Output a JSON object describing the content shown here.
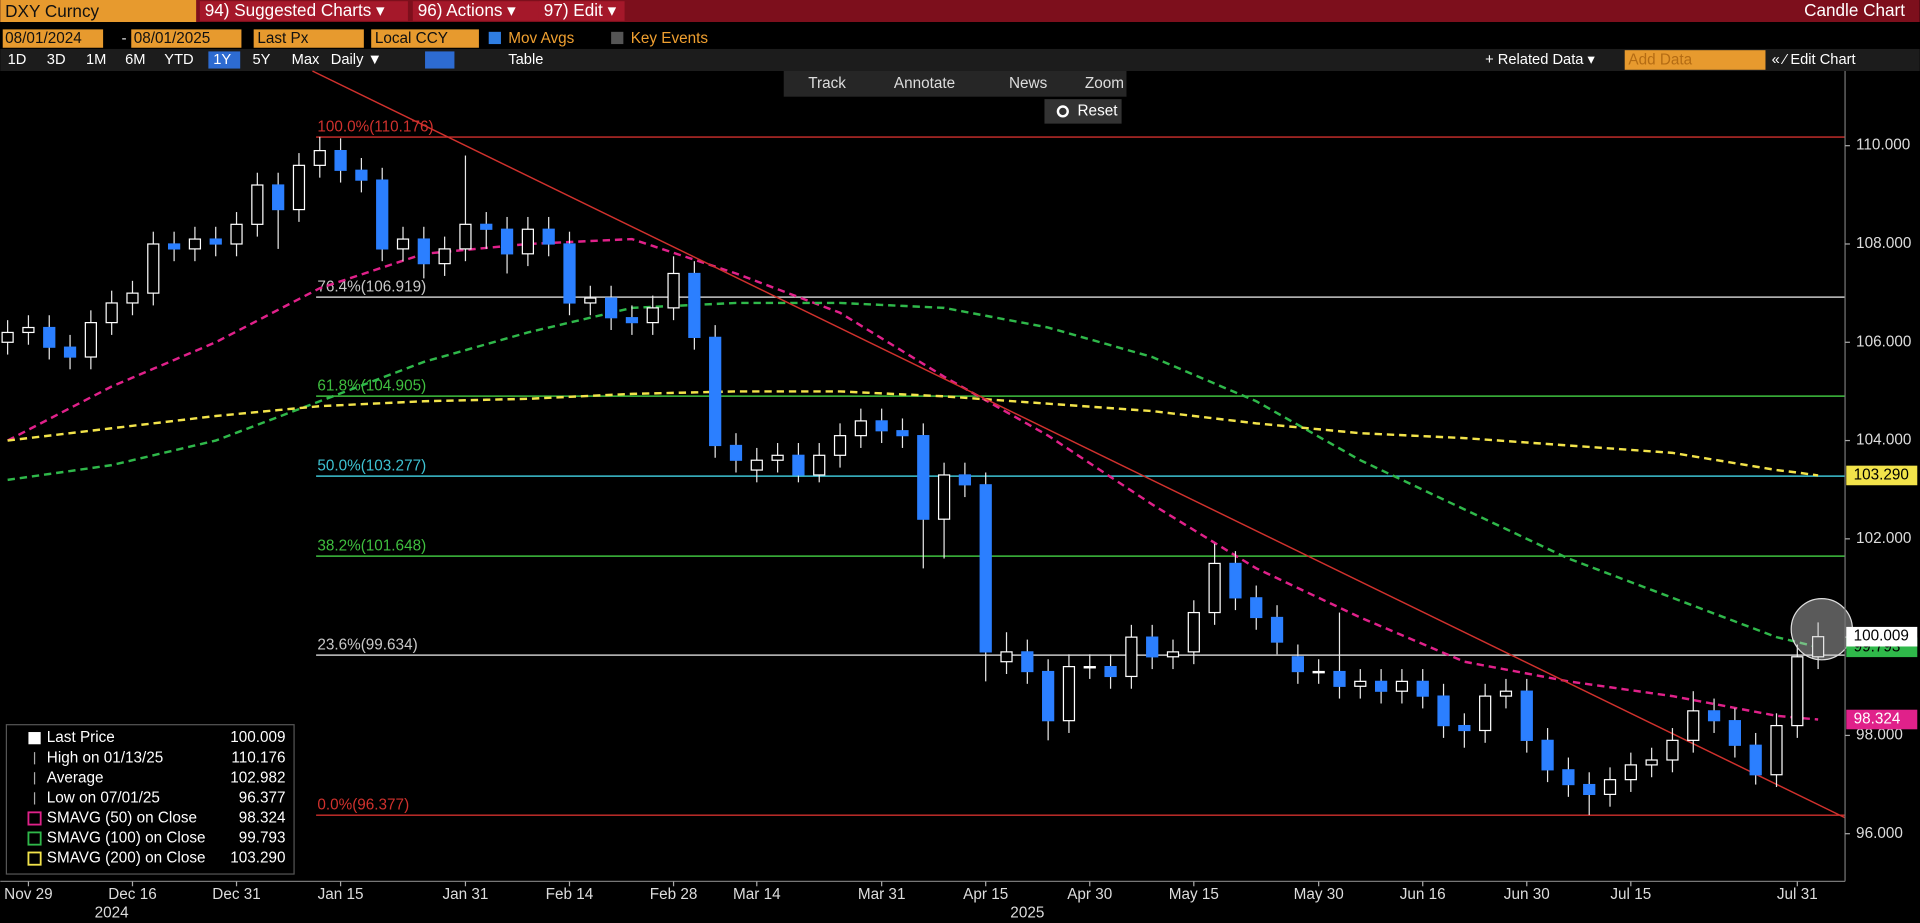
{
  "ui": {
    "ticker": "DXY Curncy",
    "menus": [
      "94) Suggested Charts ▾",
      "96) Actions ▾",
      "97) Edit ▾"
    ],
    "view_name": "Candle Chart",
    "start_date": "08/01/2024",
    "date_separator": "-",
    "end_date": "08/01/2025",
    "price_field": "Last Px",
    "currency": "Local CCY",
    "mov_avgs": "Mov Avgs",
    "key_events": "Key Events",
    "periods": [
      "1D",
      "3D",
      "1M",
      "6M",
      "YTD",
      "1Y",
      "5Y",
      "Max"
    ],
    "frequency": "Daily ▼",
    "table": "Table",
    "related_data": "+ Related Data ▾",
    "add_data": "Add Data",
    "edit_chart": "« ⁄ Edit Chart",
    "tools": [
      "Track",
      "Annotate",
      "News",
      "Zoom"
    ],
    "reset": "Reset"
  },
  "chart_data": {
    "type": "candlestick",
    "categories": [
      null,
      "Nov 29",
      null,
      null,
      null,
      null,
      "Dec 16",
      null,
      null,
      null,
      null,
      "Dec 31",
      null,
      null,
      null,
      null,
      "Jan 15",
      null,
      null,
      null,
      null,
      null,
      "Jan 31",
      null,
      null,
      null,
      null,
      "Feb 14",
      null,
      null,
      null,
      null,
      "Feb 28",
      null,
      null,
      null,
      "Mar 14",
      null,
      null,
      null,
      null,
      null,
      "Mar 31",
      null,
      null,
      null,
      null,
      "Apr 15",
      null,
      null,
      null,
      null,
      "Apr 30",
      null,
      null,
      null,
      null,
      "May 15",
      null,
      null,
      null,
      null,
      null,
      "May 30",
      null,
      null,
      null,
      null,
      "Jun 16",
      null,
      null,
      null,
      null,
      "Jun 30",
      null,
      null,
      null,
      null,
      "Jul 15",
      null,
      null,
      null,
      null,
      null,
      null,
      null,
      "Jul 31",
      null
    ],
    "year_labels": [
      {
        "value": 5,
        "label": "2024"
      },
      {
        "value": 49,
        "label": "2025"
      }
    ],
    "candles": {
      "up_color": "#ffffff",
      "down_color": "#2b7fff",
      "open": [
        106.0,
        106.2,
        106.3,
        105.9,
        105.7,
        106.4,
        106.8,
        107.0,
        108.0,
        107.9,
        108.1,
        108.0,
        108.4,
        109.2,
        108.7,
        109.6,
        109.9,
        109.5,
        109.3,
        107.9,
        108.1,
        107.6,
        107.9,
        108.4,
        108.3,
        107.8,
        108.3,
        108.0,
        106.8,
        106.9,
        106.5,
        106.4,
        106.7,
        107.4,
        106.1,
        103.9,
        103.4,
        103.6,
        103.7,
        103.3,
        103.7,
        104.1,
        104.4,
        104.2,
        104.1,
        102.4,
        103.3,
        103.1,
        99.5,
        99.7,
        99.3,
        98.3,
        99.4,
        99.4,
        99.2,
        100.0,
        99.6,
        99.7,
        100.5,
        101.5,
        100.8,
        100.4,
        99.6,
        99.3,
        99.3,
        99.0,
        99.1,
        98.9,
        99.1,
        98.8,
        98.2,
        98.1,
        98.8,
        98.9,
        97.9,
        97.3,
        97.0,
        96.8,
        97.1,
        97.4,
        97.5,
        97.9,
        98.5,
        98.3,
        97.8,
        97.2,
        98.2,
        99.6
      ],
      "high": [
        106.45,
        106.55,
        106.55,
        106.15,
        106.65,
        107.05,
        107.25,
        108.25,
        108.25,
        108.35,
        108.35,
        108.65,
        109.45,
        109.45,
        109.85,
        110.18,
        110.15,
        109.75,
        109.55,
        108.35,
        108.35,
        108.15,
        109.8,
        108.65,
        108.55,
        108.55,
        108.55,
        108.25,
        107.15,
        107.15,
        106.75,
        106.95,
        107.75,
        107.65,
        106.35,
        104.15,
        103.85,
        103.95,
        103.95,
        103.95,
        104.35,
        104.65,
        104.65,
        104.45,
        104.35,
        103.55,
        103.55,
        103.35,
        100.1,
        99.95,
        99.55,
        99.65,
        99.65,
        99.65,
        100.25,
        100.25,
        99.95,
        100.75,
        101.9,
        101.75,
        101.05,
        100.65,
        99.85,
        99.55,
        100.5,
        99.35,
        99.35,
        99.35,
        99.35,
        99.05,
        98.45,
        99.05,
        99.15,
        99.15,
        98.15,
        97.55,
        97.25,
        97.35,
        97.65,
        97.75,
        98.15,
        98.9,
        98.75,
        98.55,
        98.05,
        98.45,
        99.85,
        100.3
      ],
      "low": [
        105.75,
        105.95,
        105.65,
        105.45,
        105.45,
        106.15,
        106.55,
        106.75,
        107.65,
        107.65,
        107.75,
        107.75,
        108.15,
        107.9,
        108.45,
        109.35,
        109.25,
        109.05,
        107.65,
        107.65,
        107.3,
        107.35,
        107.65,
        107.9,
        107.4,
        107.55,
        107.75,
        106.55,
        106.55,
        106.25,
        106.15,
        106.15,
        106.45,
        105.85,
        103.65,
        103.35,
        103.15,
        103.35,
        103.15,
        103.15,
        103.45,
        103.85,
        103.95,
        103.85,
        101.4,
        101.6,
        102.85,
        99.1,
        99.25,
        99.05,
        97.9,
        98.05,
        99.15,
        98.95,
        98.95,
        99.35,
        99.35,
        99.45,
        100.25,
        100.55,
        100.15,
        99.65,
        99.05,
        99.05,
        98.75,
        98.75,
        98.65,
        98.65,
        98.55,
        97.95,
        97.75,
        97.85,
        98.55,
        97.65,
        97.05,
        96.75,
        96.38,
        96.55,
        96.85,
        97.15,
        97.25,
        97.65,
        98.05,
        97.55,
        97.0,
        96.95,
        97.95,
        99.35
      ],
      "close": [
        106.2,
        106.3,
        105.9,
        105.7,
        106.4,
        106.8,
        107.0,
        108.0,
        107.9,
        108.1,
        108.0,
        108.4,
        109.2,
        108.7,
        109.6,
        109.9,
        109.5,
        109.3,
        107.9,
        108.1,
        107.6,
        107.9,
        108.4,
        108.3,
        107.8,
        108.3,
        108.0,
        106.8,
        106.9,
        106.5,
        106.4,
        106.7,
        107.4,
        106.1,
        103.9,
        103.6,
        103.6,
        103.7,
        103.3,
        103.7,
        104.1,
        104.4,
        104.2,
        104.1,
        102.4,
        103.3,
        103.1,
        99.7,
        99.7,
        99.3,
        98.3,
        99.4,
        99.4,
        99.2,
        100.0,
        99.6,
        99.7,
        100.5,
        101.5,
        100.8,
        100.4,
        99.9,
        99.3,
        99.3,
        99.0,
        99.1,
        98.9,
        99.1,
        98.8,
        98.2,
        98.1,
        98.8,
        98.9,
        97.9,
        97.3,
        97.0,
        96.8,
        97.1,
        97.4,
        97.5,
        97.9,
        98.5,
        98.3,
        97.8,
        97.2,
        98.2,
        99.6,
        100.009
      ]
    },
    "last_price_label": "100.009",
    "series": [
      {
        "name": "SMAVG (50)  on Close",
        "color": "#e0218a",
        "last_label": "98.324",
        "values": [
          104.0,
          104.22,
          104.44,
          104.66,
          104.88,
          105.1,
          105.28,
          105.46,
          105.64,
          105.82,
          106.0,
          106.22,
          106.44,
          106.66,
          106.88,
          107.1,
          107.24,
          107.38,
          107.52,
          107.66,
          107.8,
          107.84,
          107.88,
          107.92,
          107.96,
          108.0,
          108.02,
          108.04,
          108.06,
          108.08,
          108.1,
          107.96,
          107.82,
          107.68,
          107.54,
          107.4,
          107.24,
          107.08,
          106.92,
          106.76,
          106.6,
          106.34,
          106.08,
          105.82,
          105.56,
          105.3,
          105.06,
          104.82,
          104.58,
          104.34,
          104.1,
          103.82,
          103.54,
          103.26,
          102.98,
          102.7,
          102.44,
          102.18,
          101.92,
          101.66,
          101.4,
          101.2,
          101.0,
          100.8,
          100.6,
          100.4,
          100.22,
          100.04,
          99.86,
          99.68,
          99.5,
          99.42,
          99.34,
          99.26,
          99.18,
          99.1,
          99.04,
          98.98,
          98.92,
          98.86,
          98.8,
          98.72,
          98.64,
          98.56,
          98.48,
          98.4,
          98.36,
          98.324
        ]
      },
      {
        "name": "SMAVG (100)  on Close",
        "color": "#2fb84a",
        "last_label": "99.793",
        "values": [
          103.2,
          103.26,
          103.32,
          103.38,
          103.44,
          103.5,
          103.6,
          103.7,
          103.8,
          103.9,
          104.0,
          104.16,
          104.32,
          104.48,
          104.64,
          104.8,
          104.96,
          105.12,
          105.28,
          105.44,
          105.6,
          105.72,
          105.84,
          105.96,
          106.08,
          106.2,
          106.3,
          106.4,
          106.5,
          106.6,
          106.7,
          106.72,
          106.74,
          106.76,
          106.78,
          106.8,
          106.8,
          106.8,
          106.8,
          106.8,
          106.8,
          106.78,
          106.76,
          106.74,
          106.72,
          106.7,
          106.62,
          106.54,
          106.46,
          106.38,
          106.3,
          106.18,
          106.06,
          105.94,
          105.82,
          105.7,
          105.52,
          105.34,
          105.16,
          104.98,
          104.8,
          104.56,
          104.32,
          104.08,
          103.84,
          103.6,
          103.4,
          103.2,
          103.0,
          102.8,
          102.6,
          102.4,
          102.2,
          102.0,
          101.8,
          101.6,
          101.44,
          101.28,
          101.12,
          100.96,
          100.8,
          100.64,
          100.48,
          100.32,
          100.16,
          100.0,
          99.9,
          99.793
        ]
      },
      {
        "name": "SMAVG (200)  on Close",
        "color": "#f2e34a",
        "last_label": "103.290",
        "values": [
          104.0,
          104.05,
          104.1,
          104.15,
          104.2,
          104.25,
          104.3,
          104.35,
          104.4,
          104.45,
          104.5,
          104.54,
          104.58,
          104.62,
          104.66,
          104.7,
          104.72,
          104.74,
          104.76,
          104.78,
          104.8,
          104.81,
          104.82,
          104.83,
          104.84,
          104.85,
          104.87,
          104.89,
          104.91,
          104.93,
          104.95,
          104.96,
          104.97,
          104.98,
          104.99,
          105.0,
          105.0,
          105.0,
          105.0,
          105.0,
          105.0,
          104.98,
          104.96,
          104.94,
          104.92,
          104.9,
          104.87,
          104.84,
          104.81,
          104.78,
          104.75,
          104.72,
          104.69,
          104.66,
          104.63,
          104.6,
          104.55,
          104.5,
          104.45,
          104.4,
          104.35,
          104.31,
          104.27,
          104.23,
          104.19,
          104.15,
          104.13,
          104.11,
          104.09,
          104.07,
          104.05,
          104.02,
          103.99,
          103.96,
          103.93,
          103.9,
          103.87,
          103.84,
          103.81,
          103.78,
          103.75,
          103.68,
          103.61,
          103.54,
          103.47,
          103.4,
          103.35,
          103.29
        ]
      }
    ],
    "fib_levels": [
      {
        "value": 110.176,
        "label": "100.0%(110.176)",
        "color": "#d0312d"
      },
      {
        "value": 106.919,
        "label": "76.4%(106.919)",
        "color": "#c8c8c8"
      },
      {
        "value": 104.905,
        "label": "61.8%(104.905)",
        "color": "#3fbf3f"
      },
      {
        "value": 103.277,
        "label": "50.0%(103.277)",
        "color": "#3ec3d3"
      },
      {
        "value": 101.648,
        "label": "38.2%(101.648)",
        "color": "#3fbf3f"
      },
      {
        "value": 99.634,
        "label": "23.6%(99.634)",
        "color": "#c8c8c8"
      },
      {
        "value": 96.377,
        "label": "0.0%(96.377)",
        "color": "#d0312d"
      }
    ],
    "stats": [
      {
        "name": "Last Price",
        "value": 100.009
      },
      {
        "name": "High on 01/13/25",
        "value": 110.176
      },
      {
        "name": "Average",
        "value": 102.982
      },
      {
        "name": "Low on 07/01/25",
        "value": 96.377
      }
    ],
    "ylim": [
      95.03,
      111.52
    ],
    "yticks": [
      {
        "value": 96,
        "label": "96.000"
      },
      {
        "value": 98,
        "label": "98.000"
      },
      {
        "value": 100,
        "label": "100.000"
      },
      {
        "value": 102,
        "label": "102.000"
      },
      {
        "value": 104,
        "label": "104.000"
      },
      {
        "value": 106,
        "label": "106.000"
      },
      {
        "value": 108,
        "label": "108.000"
      },
      {
        "value": 110,
        "label": "110.000"
      }
    ],
    "grid": false,
    "legend_position": "bottom-left"
  }
}
